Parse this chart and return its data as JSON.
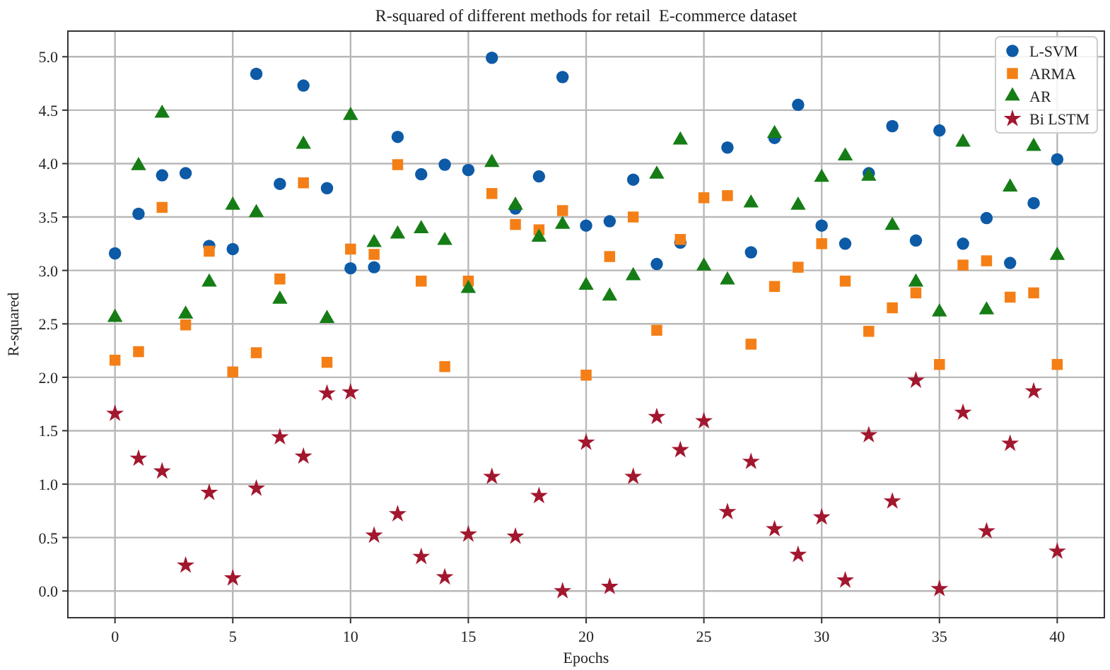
{
  "chart_data": {
    "type": "scatter",
    "title": "R-squared of different methods for retail  E-commerce dataset",
    "xlabel": "Epochs",
    "ylabel": "R-squared",
    "x": [
      0,
      1,
      2,
      3,
      4,
      5,
      6,
      7,
      8,
      9,
      10,
      11,
      12,
      13,
      14,
      15,
      16,
      17,
      18,
      19,
      20,
      21,
      22,
      23,
      24,
      25,
      26,
      27,
      28,
      29,
      30,
      31,
      32,
      33,
      34,
      35,
      36,
      37,
      38,
      39,
      40
    ],
    "series": [
      {
        "name": "L-SVM",
        "color": "#0d5aa7",
        "marker": "circle",
        "values": [
          3.16,
          3.53,
          3.89,
          3.91,
          3.23,
          3.2,
          4.84,
          3.81,
          4.73,
          3.77,
          3.02,
          3.03,
          4.25,
          3.9,
          3.99,
          3.94,
          4.99,
          3.58,
          3.88,
          4.81,
          3.42,
          3.46,
          3.85,
          3.06,
          3.26,
          null,
          4.15,
          3.17,
          4.24,
          4.55,
          3.42,
          3.25,
          3.91,
          4.35,
          3.28,
          4.31,
          3.25,
          3.49,
          3.07,
          3.63,
          4.04
        ]
      },
      {
        "name": "ARMA",
        "color": "#f47f17",
        "marker": "square",
        "values": [
          2.16,
          2.24,
          3.59,
          2.49,
          3.18,
          2.05,
          2.23,
          2.92,
          3.82,
          2.14,
          3.2,
          3.15,
          3.99,
          2.9,
          2.1,
          2.9,
          3.72,
          3.43,
          3.38,
          3.56,
          2.02,
          3.13,
          3.5,
          2.44,
          3.29,
          3.68,
          3.7,
          2.31,
          2.85,
          3.03,
          3.25,
          2.9,
          2.43,
          2.65,
          2.79,
          2.12,
          3.05,
          3.09,
          2.75,
          2.79,
          2.12
        ]
      },
      {
        "name": "AR",
        "color": "#167d16",
        "marker": "triangle",
        "values": [
          2.56,
          3.98,
          4.47,
          2.59,
          2.89,
          3.61,
          3.54,
          2.73,
          4.18,
          2.55,
          4.45,
          3.26,
          3.34,
          3.39,
          3.28,
          2.83,
          4.01,
          3.61,
          3.31,
          3.43,
          2.86,
          2.76,
          2.95,
          3.9,
          4.22,
          3.04,
          2.91,
          3.63,
          4.28,
          3.61,
          3.87,
          4.07,
          3.88,
          3.42,
          2.89,
          2.61,
          4.2,
          2.63,
          3.78,
          4.16,
          3.14
        ]
      },
      {
        "name": "Bi LSTM",
        "color": "#a3172e",
        "marker": "star",
        "values": [
          1.66,
          1.24,
          1.12,
          0.24,
          0.92,
          0.12,
          0.96,
          1.44,
          1.26,
          1.85,
          1.86,
          0.52,
          0.72,
          0.32,
          0.13,
          0.53,
          1.07,
          0.51,
          0.89,
          0.0,
          1.39,
          0.04,
          1.07,
          1.63,
          1.32,
          1.59,
          0.74,
          1.21,
          0.58,
          0.34,
          0.69,
          0.1,
          1.46,
          0.84,
          1.97,
          0.02,
          1.67,
          0.56,
          1.38,
          1.87,
          0.37
        ]
      }
    ],
    "xlim": [
      -2,
      42
    ],
    "ylim": [
      -0.25,
      5.24
    ],
    "xticks": [
      0,
      5,
      10,
      15,
      20,
      25,
      30,
      35,
      40
    ],
    "yticks": [
      {
        "value": 0,
        "label": "0.0"
      },
      {
        "value": 0.5,
        "label": "0.5"
      },
      {
        "value": 1,
        "label": "1.0"
      },
      {
        "value": 1.5,
        "label": "1.5"
      },
      {
        "value": 2,
        "label": "2.0"
      },
      {
        "value": 2.5,
        "label": "2.5"
      },
      {
        "value": 3,
        "label": "3.0"
      },
      {
        "value": 3.5,
        "label": "3.5"
      },
      {
        "value": 4,
        "label": "4.0"
      },
      {
        "value": 4.5,
        "label": "4.5"
      },
      {
        "value": 5,
        "label": "5.0"
      }
    ],
    "grid": true,
    "legend": "top right"
  }
}
